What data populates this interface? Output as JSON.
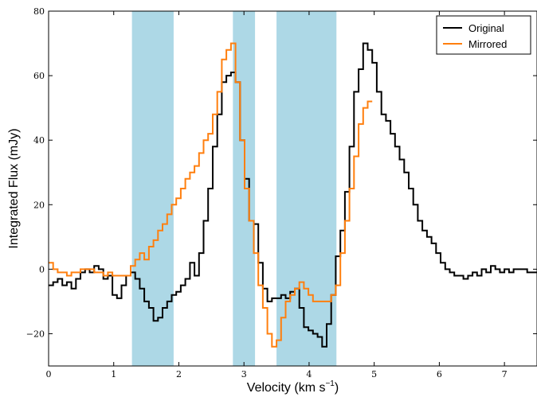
{
  "chart_data": {
    "type": "line",
    "title": "",
    "xlabel": "Velocity (km s",
    "xlabel_sup": "−1",
    "xlabel_close": ")",
    "ylabel": "Integrated Flux (mJy)",
    "xlim": [
      0,
      7.5
    ],
    "ylim": [
      -30,
      80
    ],
    "xticks": [
      0,
      1,
      2,
      3,
      4,
      5,
      6,
      7
    ],
    "xtick_labels": [
      "0",
      "1",
      "2",
      "3",
      "4",
      "5",
      "6",
      "7"
    ],
    "yticks": [
      -20,
      0,
      20,
      40,
      60,
      80
    ],
    "ytick_labels": [
      "−20",
      "0",
      "20",
      "40",
      "60",
      "80"
    ],
    "grid": false,
    "legend_position": "top-right",
    "shaded_regions": {
      "color": "#add8e6",
      "ranges": [
        [
          1.28,
          1.92
        ],
        [
          2.83,
          3.17
        ],
        [
          3.5,
          4.42
        ]
      ]
    },
    "series": [
      {
        "name": "Original",
        "color": "#000000",
        "step": true,
        "x": [
          0.0,
          0.07,
          0.14,
          0.21,
          0.28,
          0.35,
          0.42,
          0.49,
          0.56,
          0.63,
          0.7,
          0.77,
          0.84,
          0.91,
          0.98,
          1.05,
          1.12,
          1.19,
          1.26,
          1.33,
          1.4,
          1.47,
          1.54,
          1.61,
          1.68,
          1.75,
          1.82,
          1.89,
          1.96,
          2.03,
          2.1,
          2.17,
          2.24,
          2.31,
          2.38,
          2.45,
          2.52,
          2.59,
          2.66,
          2.73,
          2.8,
          2.87,
          2.94,
          3.01,
          3.08,
          3.15,
          3.22,
          3.29,
          3.36,
          3.43,
          3.5,
          3.57,
          3.64,
          3.71,
          3.78,
          3.85,
          3.92,
          3.99,
          4.06,
          4.13,
          4.2,
          4.27,
          4.34,
          4.41,
          4.48,
          4.55,
          4.62,
          4.69,
          4.76,
          4.83,
          4.9,
          4.97,
          5.04,
          5.11,
          5.18,
          5.25,
          5.32,
          5.39,
          5.46,
          5.53,
          5.6,
          5.67,
          5.74,
          5.81,
          5.88,
          5.95,
          6.02,
          6.09,
          6.16,
          6.23,
          6.3,
          6.37,
          6.44,
          6.51,
          6.58,
          6.65,
          6.72,
          6.79,
          6.86,
          6.93,
          7.0,
          7.07,
          7.14,
          7.21,
          7.28,
          7.35,
          7.42
        ],
        "values": [
          -5,
          -4,
          -3,
          -5,
          -4,
          -6,
          -3,
          -1,
          0,
          -1,
          1,
          0,
          -3,
          -2,
          -8,
          -9,
          -5,
          -2,
          -1,
          -3,
          -6,
          -10,
          -12,
          -16,
          -15,
          -12,
          -10,
          -8,
          -7,
          -5,
          -3,
          2,
          -2,
          5,
          15,
          25,
          38,
          48,
          58,
          60,
          61,
          58,
          40,
          28,
          15,
          14,
          2,
          -6,
          -10,
          -9,
          -9,
          -8,
          -9,
          -7,
          -6,
          -12,
          -18,
          -19,
          -20,
          -21,
          -24,
          -17,
          -8,
          4,
          12,
          24,
          38,
          55,
          62,
          70,
          68,
          64,
          55,
          48,
          46,
          42,
          38,
          34,
          30,
          25,
          20,
          15,
          12,
          10,
          8,
          5,
          2,
          0,
          -1,
          -2,
          -2,
          -3,
          -2,
          -1,
          -2,
          0,
          -1,
          1,
          0,
          -1,
          0,
          -1,
          0,
          0,
          0,
          -1,
          -1
        ],
        "x_end": 7.5
      },
      {
        "name": "Mirrored",
        "color": "#ff7f0e",
        "step": true,
        "x": [
          0.0,
          0.07,
          0.14,
          0.21,
          0.28,
          0.35,
          0.42,
          0.49,
          0.56,
          0.63,
          0.7,
          0.77,
          0.84,
          0.91,
          0.98,
          1.05,
          1.12,
          1.19,
          1.26,
          1.33,
          1.4,
          1.47,
          1.54,
          1.61,
          1.68,
          1.75,
          1.82,
          1.89,
          1.96,
          2.03,
          2.1,
          2.17,
          2.24,
          2.31,
          2.38,
          2.45,
          2.52,
          2.59,
          2.66,
          2.73,
          2.8,
          2.87,
          2.94,
          3.01,
          3.08,
          3.15,
          3.22,
          3.29,
          3.36,
          3.43,
          3.5,
          3.57,
          3.64,
          3.71,
          3.78,
          3.85,
          3.92,
          3.99,
          4.06,
          4.13,
          4.2,
          4.27,
          4.34,
          4.41,
          4.48,
          4.55,
          4.62,
          4.69,
          4.76,
          4.83,
          4.9
        ],
        "values": [
          2,
          0,
          -1,
          -1,
          -2,
          -1,
          -1,
          0,
          0,
          0,
          -1,
          -1,
          -2,
          -1,
          -2,
          -2,
          -2,
          -2,
          1,
          3,
          5,
          3,
          7,
          9,
          12,
          14,
          17,
          20,
          22,
          25,
          28,
          30,
          32,
          36,
          40,
          42,
          48,
          55,
          65,
          68,
          70,
          58,
          40,
          25,
          15,
          5,
          -5,
          -12,
          -20,
          -24,
          -22,
          -15,
          -10,
          -8,
          -6,
          -4,
          -6,
          -8,
          -10,
          -10,
          -10,
          -10,
          -8,
          -5,
          5,
          15,
          25,
          35,
          45,
          50,
          52
        ],
        "x_end": 4.97
      }
    ]
  }
}
